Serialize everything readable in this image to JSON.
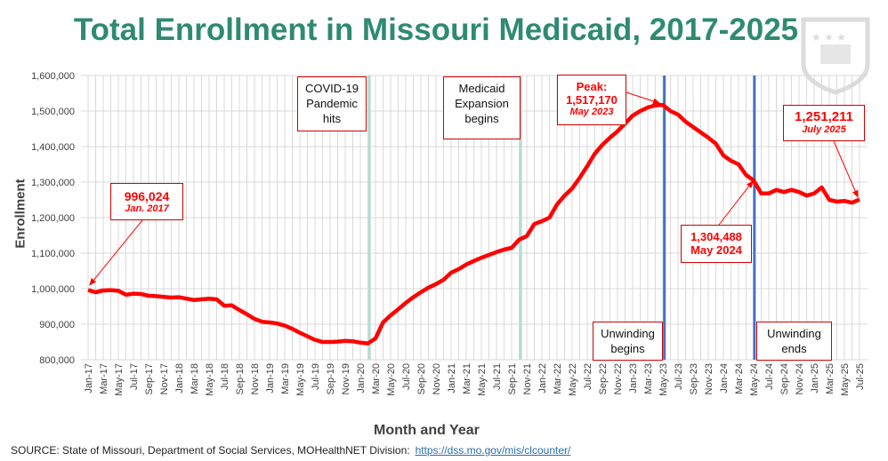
{
  "chart_data": {
    "type": "line",
    "title": "Total Enrollment in Missouri Medicaid, 2017-2025",
    "xlabel": "Month and Year",
    "ylabel": "Enrollment",
    "ylim": [
      800000,
      1600000
    ],
    "yticks": [
      "800,000",
      "900,000",
      "1,000,000",
      "1,100,000",
      "1,200,000",
      "1,300,000",
      "1,400,000",
      "1,500,000",
      "1,600,000"
    ],
    "xtick_labels": [
      "Jan-17",
      "Mar-17",
      "May-17",
      "Jul-17",
      "Sep-17",
      "Nov-17",
      "Jan-18",
      "Mar-18",
      "May-18",
      "Jul-18",
      "Sep-18",
      "Nov-18",
      "Jan-19",
      "Mar-19",
      "May-19",
      "Jul-19",
      "Sep-19",
      "Nov-19",
      "Jan-20",
      "Mar-20",
      "May-20",
      "Jul-20",
      "Sep-20",
      "Nov-20",
      "Jan-21",
      "Mar-21",
      "May-21",
      "Jul-21",
      "Sep-21",
      "Nov-21",
      "Jan-22",
      "Mar-22",
      "May-22",
      "Jul-22",
      "Sep-22",
      "Nov-22",
      "Jan-23",
      "Mar-23",
      "May-23",
      "Jul-23",
      "Sep-23",
      "Nov-23",
      "Jan-24",
      "Mar-24",
      "May-24",
      "Jul-24",
      "Sep-24",
      "Nov-24",
      "Jan-25",
      "Mar-25",
      "May-25",
      "Jul-25"
    ],
    "grid": true,
    "series": [
      {
        "name": "Total Enrollment",
        "color": "#ff0000",
        "start": "Jan-17",
        "frequency": "monthly",
        "values": [
          996024,
          990000,
          995000,
          996000,
          994000,
          983000,
          986000,
          985000,
          980000,
          979000,
          977000,
          975000,
          976000,
          972000,
          968000,
          970000,
          972000,
          970000,
          952000,
          953000,
          940000,
          928000,
          915000,
          907000,
          905000,
          902000,
          896000,
          887000,
          876000,
          866000,
          856000,
          850000,
          850000,
          851000,
          853000,
          852000,
          848000,
          846000,
          860000,
          905000,
          925000,
          942000,
          960000,
          976000,
          990000,
          1003000,
          1013000,
          1025000,
          1045000,
          1055000,
          1068000,
          1078000,
          1087000,
          1095000,
          1103000,
          1110000,
          1115000,
          1138000,
          1148000,
          1182000,
          1190000,
          1200000,
          1237000,
          1262000,
          1282000,
          1312000,
          1345000,
          1380000,
          1405000,
          1425000,
          1443000,
          1465000,
          1487000,
          1500000,
          1510000,
          1516000,
          1517170,
          1500000,
          1490000,
          1470000,
          1455000,
          1440000,
          1425000,
          1408000,
          1375000,
          1360000,
          1350000,
          1320000,
          1304488,
          1268000,
          1268000,
          1278000,
          1272000,
          1278000,
          1272000,
          1262000,
          1268000,
          1285000,
          1250000,
          1245000,
          1247000,
          1242000,
          1251211
        ]
      }
    ],
    "event_lines": [
      {
        "label_lines": [
          "COVID-19",
          "Pandemic",
          "hits"
        ],
        "month_index": 37.2,
        "color": "#b4ddd3"
      },
      {
        "label_lines": [
          "Medicaid",
          "Expansion",
          "begins"
        ],
        "month_index": 57.2,
        "color": "#b4ddd3"
      },
      {
        "label_lines": [
          "Unwinding",
          "begins"
        ],
        "month_index": 76.2,
        "color": "#4472c4"
      },
      {
        "label_lines": [
          "Unwinding",
          "ends"
        ],
        "month_index": 88.1,
        "color": "#4472c4"
      }
    ],
    "annotations": [
      {
        "value": "996,024",
        "date": "Jan. 2017"
      },
      {
        "title": "Peak:",
        "value": "1,517,170",
        "date": "May 2023"
      },
      {
        "value": "1,304,488",
        "date": "May 2024"
      },
      {
        "value": "1,251,211",
        "date": "July 2025"
      }
    ]
  },
  "source": {
    "text": "SOURCE: State of Missouri, Department of Social Services, MOHealthNET Division:",
    "link": "https://dss.mo.gov/mis/clcounter/"
  }
}
